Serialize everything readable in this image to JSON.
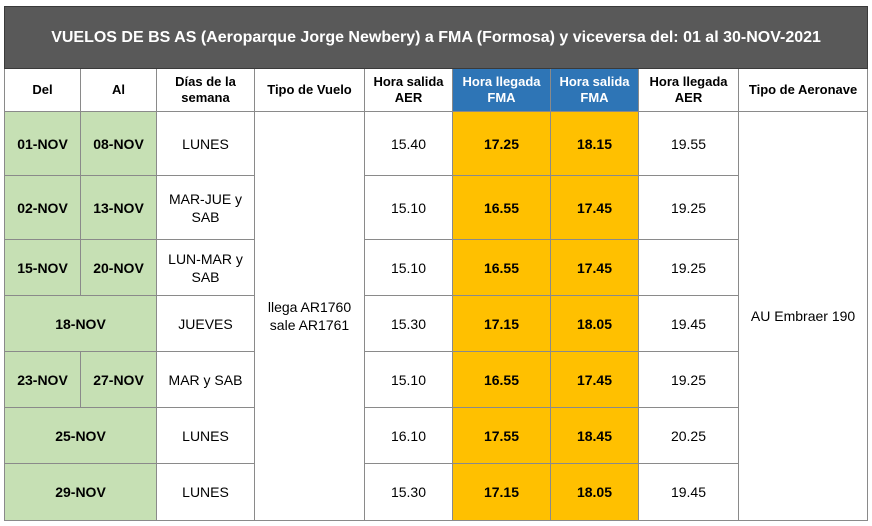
{
  "title": "VUELOS DE BS AS (Aeroparque Jorge Newbery) a FMA (Formosa) y viceversa del: 01 al 30-NOV-2021",
  "headers": {
    "del": "Del",
    "al": "Al",
    "dias": "Días de la semana",
    "tipo_vuelo": "Tipo de Vuelo",
    "salida_aer": "Hora salida AER",
    "llegada_fma": "Hora llegada FMA",
    "salida_fma": "Hora salida FMA",
    "llegada_aer": "Hora llegada AER",
    "aeronave": "Tipo de Aeronave"
  },
  "tipo_vuelo_value": {
    "line1": "llega AR1760",
    "line2": "sale AR1761"
  },
  "aeronave_value": "AU Embraer 190",
  "rows": [
    {
      "del": "01-NOV",
      "al": "08-NOV",
      "dias": "LUNES",
      "salida_aer": "15.40",
      "llegada_fma": "17.25",
      "salida_fma": "18.15",
      "llegada_aer": "19.55"
    },
    {
      "del": "02-NOV",
      "al": "13-NOV",
      "dias": "MAR-JUE y SAB",
      "salida_aer": "15.10",
      "llegada_fma": "16.55",
      "salida_fma": "17.45",
      "llegada_aer": "19.25"
    },
    {
      "del": "15-NOV",
      "al": "20-NOV",
      "dias": "LUN-MAR y SAB",
      "salida_aer": "15.10",
      "llegada_fma": "16.55",
      "salida_fma": "17.45",
      "llegada_aer": "19.25"
    },
    {
      "del": "18-NOV",
      "al": "",
      "dias": "JUEVES",
      "salida_aer": "15.30",
      "llegada_fma": "17.15",
      "salida_fma": "18.05",
      "llegada_aer": "19.45"
    },
    {
      "del": "23-NOV",
      "al": "27-NOV",
      "dias": "MAR y SAB",
      "salida_aer": "15.10",
      "llegada_fma": "16.55",
      "salida_fma": "17.45",
      "llegada_aer": "19.25"
    },
    {
      "del": "25-NOV",
      "al": "",
      "dias": "LUNES",
      "salida_aer": "16.10",
      "llegada_fma": "17.55",
      "salida_fma": "18.45",
      "llegada_aer": "20.25"
    },
    {
      "del": "29-NOV",
      "al": "",
      "dias": "LUNES",
      "salida_aer": "15.30",
      "llegada_fma": "17.15",
      "salida_fma": "18.05",
      "llegada_aer": "19.45"
    }
  ],
  "colors": {
    "title_bg": "#595959",
    "header_blue": "#2e75b6",
    "date_green": "#c6e0b4",
    "fma_gold": "#ffc000"
  }
}
